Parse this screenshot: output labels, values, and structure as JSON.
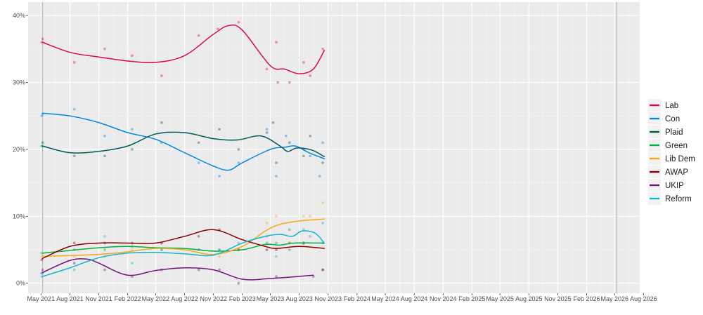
{
  "chart_data": {
    "type": "line",
    "title": "",
    "xlabel": "",
    "ylabel": "",
    "xlim": [
      "2021-03-21",
      "2026-07-20"
    ],
    "ylim": [
      -1.5,
      42
    ],
    "grid": true,
    "legend_position": "right",
    "x_ticks": [
      {
        "date": "2021-05-01",
        "label": "May 2021"
      },
      {
        "date": "2021-08-01",
        "label": "Aug 2021"
      },
      {
        "date": "2021-11-01",
        "label": "Nov 2021"
      },
      {
        "date": "2022-02-01",
        "label": "Feb 2022"
      },
      {
        "date": "2022-05-01",
        "label": "May 2022"
      },
      {
        "date": "2022-08-01",
        "label": "Aug 2022"
      },
      {
        "date": "2022-11-01",
        "label": "Nov 2022"
      },
      {
        "date": "2023-02-01",
        "label": "Feb 2023"
      },
      {
        "date": "2023-05-01",
        "label": "May 2023"
      },
      {
        "date": "2023-08-01",
        "label": "Aug 2023"
      },
      {
        "date": "2023-11-01",
        "label": "Nov 2023"
      },
      {
        "date": "2024-02-01",
        "label": "Feb 2024"
      },
      {
        "date": "2024-05-01",
        "label": "May 2024"
      },
      {
        "date": "2024-08-01",
        "label": "Aug 2024"
      },
      {
        "date": "2024-11-01",
        "label": "Nov 2024"
      },
      {
        "date": "2025-02-01",
        "label": "Feb 2025"
      },
      {
        "date": "2025-05-01",
        "label": "May 2025"
      },
      {
        "date": "2025-08-01",
        "label": "Aug 2025"
      },
      {
        "date": "2025-11-01",
        "label": "Nov 2025"
      },
      {
        "date": "2026-02-01",
        "label": "Feb 2026"
      },
      {
        "date": "2026-05-01",
        "label": "May 2026"
      },
      {
        "date": "2026-08-01",
        "label": "Aug 2026"
      }
    ],
    "y_ticks": [
      {
        "value": 0,
        "label": "0%"
      },
      {
        "value": 10,
        "label": "10%"
      },
      {
        "value": 20,
        "label": "20%"
      },
      {
        "value": 30,
        "label": "30%"
      },
      {
        "value": 40,
        "label": "40%"
      }
    ],
    "reference_lines": [
      "2021-05-06",
      "2026-05-07"
    ],
    "series": [
      {
        "name": "Lab",
        "color": "#dc0a4a",
        "trend": [
          [
            "2021-05-06",
            36
          ],
          [
            "2021-08-01",
            34.5
          ],
          [
            "2021-11-01",
            33.8
          ],
          [
            "2022-02-01",
            33.2
          ],
          [
            "2022-05-01",
            33
          ],
          [
            "2022-08-01",
            34
          ],
          [
            "2022-11-01",
            37.2
          ],
          [
            "2022-12-20",
            38.5
          ],
          [
            "2023-02-01",
            37.8
          ],
          [
            "2023-05-01",
            32.5
          ],
          [
            "2023-06-15",
            32
          ],
          [
            "2023-08-01",
            31.3
          ],
          [
            "2023-09-15",
            32
          ],
          [
            "2023-10-20",
            34.8
          ]
        ],
        "points": [
          [
            "2021-05-03",
            36
          ],
          [
            "2021-05-06",
            36.5
          ],
          [
            "2021-08-15",
            33
          ],
          [
            "2021-11-20",
            35
          ],
          [
            "2022-02-15",
            34
          ],
          [
            "2022-05-20",
            31
          ],
          [
            "2022-09-15",
            37
          ],
          [
            "2022-11-15",
            38
          ],
          [
            "2023-01-20",
            39
          ],
          [
            "2023-04-20",
            32
          ],
          [
            "2023-05-20",
            36
          ],
          [
            "2023-05-25",
            30
          ],
          [
            "2023-07-01",
            30
          ],
          [
            "2023-08-15",
            33
          ],
          [
            "2023-09-05",
            31
          ],
          [
            "2023-10-15",
            35
          ]
        ]
      },
      {
        "name": "Con",
        "color": "#0087dc",
        "trend": [
          [
            "2021-05-06",
            25.4
          ],
          [
            "2021-08-01",
            25
          ],
          [
            "2021-11-01",
            24
          ],
          [
            "2022-02-01",
            22.5
          ],
          [
            "2022-05-01",
            21.5
          ],
          [
            "2022-08-01",
            19.5
          ],
          [
            "2022-11-01",
            17.5
          ],
          [
            "2022-12-20",
            16.9
          ],
          [
            "2023-02-01",
            18
          ],
          [
            "2023-05-01",
            20
          ],
          [
            "2023-06-15",
            20.3
          ],
          [
            "2023-07-20",
            20.5
          ],
          [
            "2023-09-01",
            19.5
          ],
          [
            "2023-10-20",
            18.6
          ]
        ],
        "points": [
          [
            "2021-05-03",
            25
          ],
          [
            "2021-05-06",
            25.3
          ],
          [
            "2021-08-15",
            26
          ],
          [
            "2021-11-20",
            22
          ],
          [
            "2022-02-15",
            23
          ],
          [
            "2022-05-20",
            21
          ],
          [
            "2022-09-15",
            18
          ],
          [
            "2022-11-20",
            16
          ],
          [
            "2023-01-20",
            18
          ],
          [
            "2023-04-20",
            23
          ],
          [
            "2023-05-20",
            16
          ],
          [
            "2023-06-20",
            22
          ],
          [
            "2023-08-15",
            20
          ],
          [
            "2023-09-05",
            19
          ],
          [
            "2023-10-05",
            16
          ],
          [
            "2023-10-15",
            21
          ]
        ]
      },
      {
        "name": "Plaid",
        "color": "#005b54",
        "trend": [
          [
            "2021-05-06",
            20.5
          ],
          [
            "2021-08-01",
            19.5
          ],
          [
            "2021-11-01",
            19.7
          ],
          [
            "2022-02-01",
            20.5
          ],
          [
            "2022-05-01",
            22.3
          ],
          [
            "2022-08-01",
            22.5
          ],
          [
            "2022-11-01",
            21.6
          ],
          [
            "2023-01-15",
            21.4
          ],
          [
            "2023-04-01",
            22
          ],
          [
            "2023-06-01",
            20.5
          ],
          [
            "2023-06-25",
            19.7
          ],
          [
            "2023-07-25",
            20.2
          ],
          [
            "2023-09-10",
            19.9
          ],
          [
            "2023-10-20",
            18.9
          ]
        ],
        "points": [
          [
            "2021-05-03",
            20.5
          ],
          [
            "2021-05-06",
            21
          ],
          [
            "2021-08-15",
            19
          ],
          [
            "2021-11-20",
            19
          ],
          [
            "2022-02-15",
            20
          ],
          [
            "2022-05-20",
            24
          ],
          [
            "2022-09-15",
            21
          ],
          [
            "2022-11-20",
            23
          ],
          [
            "2023-01-20",
            20
          ],
          [
            "2023-04-20",
            22.5
          ],
          [
            "2023-05-10",
            24
          ],
          [
            "2023-05-20",
            18
          ],
          [
            "2023-07-01",
            21
          ],
          [
            "2023-08-15",
            19
          ],
          [
            "2023-09-05",
            22
          ],
          [
            "2023-10-15",
            18
          ]
        ]
      },
      {
        "name": "Green",
        "color": "#00b140",
        "trend": [
          [
            "2021-05-06",
            4.5
          ],
          [
            "2021-11-01",
            5.3
          ],
          [
            "2022-02-01",
            5.5
          ],
          [
            "2022-05-01",
            5.3
          ],
          [
            "2022-08-01",
            5.2
          ],
          [
            "2022-11-01",
            4.8
          ],
          [
            "2023-02-01",
            5
          ],
          [
            "2023-04-15",
            5.8
          ],
          [
            "2023-06-01",
            5.7
          ],
          [
            "2023-07-15",
            6
          ],
          [
            "2023-10-20",
            6
          ]
        ],
        "points": [
          [
            "2021-05-03",
            4.5
          ],
          [
            "2021-08-15",
            5
          ],
          [
            "2021-11-20",
            5
          ],
          [
            "2022-02-15",
            5.5
          ],
          [
            "2022-05-20",
            5
          ],
          [
            "2022-09-15",
            5
          ],
          [
            "2022-11-20",
            5
          ],
          [
            "2023-01-20",
            5
          ],
          [
            "2023-04-20",
            6
          ],
          [
            "2023-05-20",
            6
          ],
          [
            "2023-07-01",
            5
          ],
          [
            "2023-08-15",
            6
          ],
          [
            "2023-10-15",
            6
          ]
        ]
      },
      {
        "name": "Lib Dem",
        "color": "#faa61a",
        "trend": [
          [
            "2021-05-06",
            4
          ],
          [
            "2021-11-01",
            4.3
          ],
          [
            "2022-02-01",
            4.7
          ],
          [
            "2022-05-01",
            5.2
          ],
          [
            "2022-08-01",
            5
          ],
          [
            "2022-11-01",
            4.3
          ],
          [
            "2023-02-01",
            5.5
          ],
          [
            "2023-04-15",
            7.8
          ],
          [
            "2023-06-01",
            8.8
          ],
          [
            "2023-08-01",
            9.3
          ],
          [
            "2023-10-20",
            9.6
          ]
        ],
        "points": [
          [
            "2021-05-03",
            4
          ],
          [
            "2021-08-15",
            4
          ],
          [
            "2021-11-20",
            4
          ],
          [
            "2022-02-15",
            5
          ],
          [
            "2022-05-20",
            6
          ],
          [
            "2022-09-15",
            5
          ],
          [
            "2022-11-20",
            4
          ],
          [
            "2023-01-20",
            5
          ],
          [
            "2023-04-20",
            9
          ],
          [
            "2023-05-20",
            10
          ],
          [
            "2023-07-01",
            8
          ],
          [
            "2023-08-15",
            10
          ],
          [
            "2023-09-05",
            10
          ],
          [
            "2023-10-15",
            12
          ]
        ]
      },
      {
        "name": "AWAP",
        "color": "#8b0000",
        "trend": [
          [
            "2021-05-06",
            3.7
          ],
          [
            "2021-08-01",
            5.5
          ],
          [
            "2021-11-01",
            6
          ],
          [
            "2022-02-01",
            6
          ],
          [
            "2022-05-01",
            6
          ],
          [
            "2022-08-01",
            7
          ],
          [
            "2022-11-01",
            8
          ],
          [
            "2023-02-01",
            6.5
          ],
          [
            "2023-04-15",
            5.5
          ],
          [
            "2023-05-20",
            5.2
          ],
          [
            "2023-08-01",
            5.5
          ],
          [
            "2023-10-20",
            5.2
          ]
        ],
        "points": [
          [
            "2021-05-03",
            3.5
          ],
          [
            "2021-08-15",
            6
          ],
          [
            "2021-11-20",
            6
          ],
          [
            "2022-02-15",
            6
          ],
          [
            "2022-05-20",
            6
          ],
          [
            "2022-09-15",
            7
          ],
          [
            "2022-11-20",
            8
          ],
          [
            "2023-01-20",
            5
          ],
          [
            "2023-04-20",
            5
          ],
          [
            "2023-05-20",
            5
          ],
          [
            "2023-07-01",
            6
          ],
          [
            "2023-08-15",
            6
          ],
          [
            "2023-10-15",
            2
          ]
        ]
      },
      {
        "name": "UKIP",
        "color": "#70147a",
        "trend": [
          [
            "2021-05-06",
            1.6
          ],
          [
            "2021-08-01",
            3.4
          ],
          [
            "2021-09-25",
            3.6
          ],
          [
            "2021-11-01",
            3
          ],
          [
            "2022-02-01",
            1.2
          ],
          [
            "2022-05-01",
            1.9
          ],
          [
            "2022-08-01",
            2.3
          ],
          [
            "2022-11-01",
            2
          ],
          [
            "2023-02-01",
            0.6
          ],
          [
            "2023-05-01",
            0.7
          ],
          [
            "2023-09-15",
            1.2
          ]
        ],
        "points": [
          [
            "2021-05-03",
            1.5
          ],
          [
            "2021-05-06",
            2
          ],
          [
            "2021-08-15",
            3
          ],
          [
            "2021-11-20",
            2
          ],
          [
            "2022-02-15",
            1
          ],
          [
            "2022-05-20",
            2
          ],
          [
            "2022-09-15",
            2
          ],
          [
            "2022-11-20",
            2
          ],
          [
            "2023-01-20",
            0
          ],
          [
            "2023-05-20",
            1
          ],
          [
            "2023-09-15",
            1
          ],
          [
            "2023-10-15",
            2
          ]
        ]
      },
      {
        "name": "Reform",
        "color": "#12b6cf",
        "trend": [
          [
            "2021-05-06",
            1
          ],
          [
            "2021-08-01",
            2.3
          ],
          [
            "2021-11-01",
            3.8
          ],
          [
            "2022-02-01",
            4.5
          ],
          [
            "2022-05-01",
            4.6
          ],
          [
            "2022-08-01",
            4.4
          ],
          [
            "2022-11-01",
            4.2
          ],
          [
            "2023-02-01",
            6
          ],
          [
            "2023-04-15",
            7
          ],
          [
            "2023-06-01",
            7.3
          ],
          [
            "2023-07-10",
            7
          ],
          [
            "2023-08-10",
            7.8
          ],
          [
            "2023-09-20",
            7.5
          ],
          [
            "2023-10-20",
            6
          ]
        ],
        "points": [
          [
            "2021-05-03",
            1
          ],
          [
            "2021-05-06",
            1.5
          ],
          [
            "2021-08-15",
            2
          ],
          [
            "2021-11-20",
            7
          ],
          [
            "2022-02-15",
            3
          ],
          [
            "2022-05-20",
            5
          ],
          [
            "2022-09-15",
            5
          ],
          [
            "2022-11-20",
            5
          ],
          [
            "2023-01-20",
            6
          ],
          [
            "2023-04-20",
            7
          ],
          [
            "2023-05-20",
            4
          ],
          [
            "2023-07-01",
            8
          ],
          [
            "2023-08-15",
            8
          ],
          [
            "2023-09-05",
            7
          ],
          [
            "2023-10-15",
            9
          ]
        ]
      }
    ]
  }
}
